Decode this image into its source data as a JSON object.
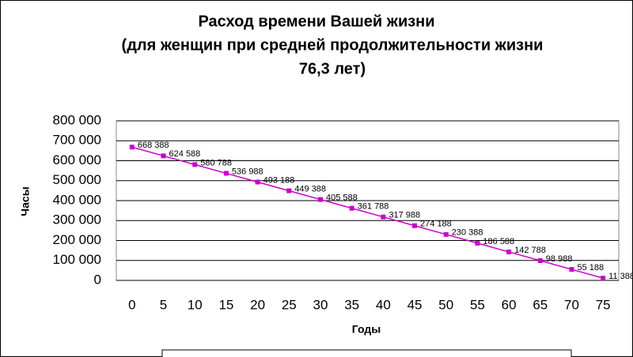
{
  "chart_data": {
    "type": "line",
    "title": [
      "Расход времени Вашей жизни",
      "(для женщин при средней продолжительности жизни",
      "76,3 лет)"
    ],
    "x_label": "Годы",
    "y_label": "Часы",
    "categories": [
      0,
      5,
      10,
      15,
      20,
      25,
      30,
      35,
      40,
      45,
      50,
      55,
      60,
      65,
      70,
      75
    ],
    "series": [
      {
        "color": "#cc00cc",
        "values": [
          668388,
          624588,
          580788,
          536988,
          493188,
          449388,
          405588,
          361788,
          317988,
          274188,
          230388,
          186588,
          142788,
          98988,
          55188,
          11388
        ],
        "value_labels": [
          "668 388",
          "624 588",
          "580 788",
          "536 988",
          "493 188",
          "449 388",
          "405 588",
          "361 788",
          "317 988",
          "274 188",
          "230 388",
          "186 588",
          "142 788",
          "98 988",
          "55 188",
          "11 388"
        ]
      }
    ],
    "ylim": [
      0,
      800000
    ],
    "yticks": [
      0,
      {
        "value": 100000,
        "label": "100 000"
      },
      {
        "value": 200000,
        "label": "200 000"
      },
      {
        "value": 300000,
        "label": "300 000"
      },
      {
        "value": 400000,
        "label": "400 000"
      },
      {
        "value": 500000,
        "label": "500 000"
      },
      {
        "value": 600000,
        "label": "600 000"
      },
      {
        "value": 700000,
        "label": "700 000"
      },
      {
        "value": 800000,
        "label": "800 000"
      }
    ],
    "grid": true
  }
}
